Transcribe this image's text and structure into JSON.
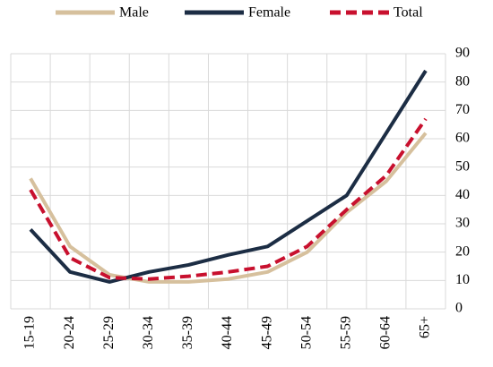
{
  "chart_data": {
    "type": "line",
    "categories": [
      "15-19",
      "20-24",
      "25-29",
      "30-34",
      "35-39",
      "40-44",
      "45-49",
      "50-54",
      "55-59",
      "60-64",
      "65+"
    ],
    "series": [
      {
        "name": "Male",
        "color": "#d6c09d",
        "dash": false,
        "values": [
          46,
          22,
          12,
          9.5,
          9.5,
          10.5,
          13,
          20,
          34,
          45,
          62
        ]
      },
      {
        "name": "Female",
        "color": "#1c2d44",
        "dash": false,
        "values": [
          28,
          13,
          9.5,
          13,
          15.5,
          19,
          22,
          31,
          40,
          62,
          84
        ]
      },
      {
        "name": "Total",
        "color": "#c8102e",
        "dash": true,
        "values": [
          42,
          18,
          11,
          10.5,
          11.5,
          13,
          15,
          22,
          35,
          47,
          67
        ]
      }
    ],
    "ylim": [
      0,
      90
    ],
    "yticks": [
      0,
      10,
      20,
      30,
      40,
      50,
      60,
      70,
      80,
      90
    ],
    "grid": true,
    "legend": "top"
  }
}
